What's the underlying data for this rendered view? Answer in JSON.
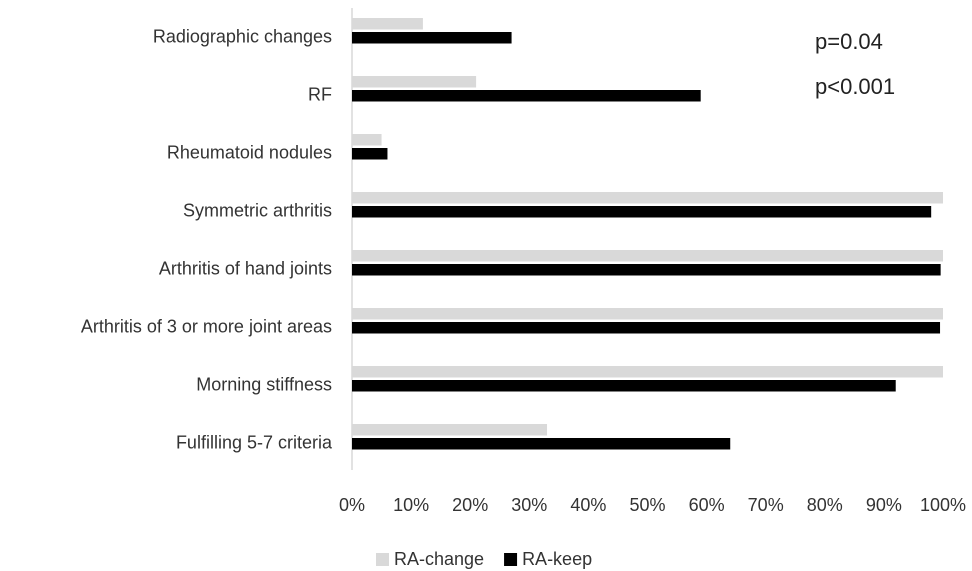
{
  "chart_data": {
    "type": "hbar",
    "categories": [
      "Radiographic changes",
      "RF",
      "Rheumatoid nodules",
      "Symmetric arthritis",
      "Arthritis of hand joints",
      "Arthritis of 3 or more joint areas",
      "Morning stiffness",
      "Fulfilling 5-7 criteria"
    ],
    "series": [
      {
        "name": "RA-change",
        "color": "#d9d9d9",
        "values": [
          12,
          21,
          5,
          100,
          100,
          100,
          100,
          33
        ]
      },
      {
        "name": "RA-keep",
        "color": "#000000",
        "values": [
          27,
          59,
          6,
          98,
          99.6,
          99.5,
          92,
          64
        ]
      }
    ],
    "xlim": [
      0,
      100
    ],
    "xticks": [
      {
        "value": 0,
        "label": "0%"
      },
      {
        "value": 10,
        "label": "10%"
      },
      {
        "value": 20,
        "label": "20%"
      },
      {
        "value": 30,
        "label": "30%"
      },
      {
        "value": 40,
        "label": "40%"
      },
      {
        "value": 50,
        "label": "50%"
      },
      {
        "value": 60,
        "label": "60%"
      },
      {
        "value": 70,
        "label": "70%"
      },
      {
        "value": 80,
        "label": "80%"
      },
      {
        "value": 90,
        "label": "90%"
      },
      {
        "value": 100,
        "label": "100%"
      }
    ],
    "grid": false,
    "legend": "bottom",
    "annotations": [
      "p=0.04",
      "p<0.001"
    ]
  }
}
